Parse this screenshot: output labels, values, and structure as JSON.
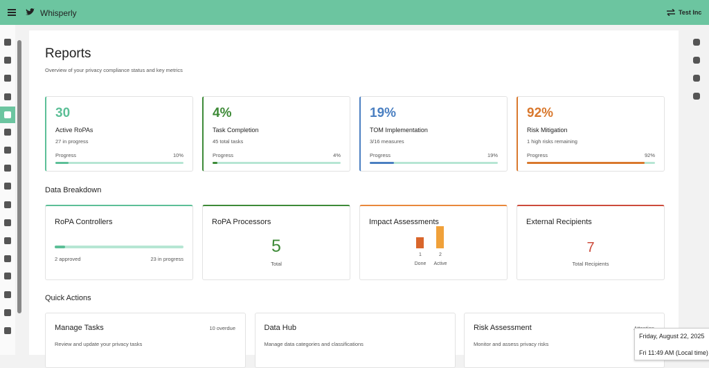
{
  "header": {
    "app_name": "Whisperly",
    "org": "Test Inc"
  },
  "page": {
    "title": "Reports",
    "subtitle": "Overview of your privacy compliance status and key metrics"
  },
  "metrics": [
    {
      "value": "30",
      "label": "Active RoPAs",
      "detail": "27 in progress",
      "progress_label": "Progress",
      "percent": "10%",
      "progress": 10,
      "color": "#5cbf97"
    },
    {
      "value": "4%",
      "label": "Task Completion",
      "detail": "45 total tasks",
      "progress_label": "Progress",
      "percent": "4%",
      "progress": 4,
      "color": "#3d8a37"
    },
    {
      "value": "19%",
      "label": "TOM Implementation",
      "detail": "3/16 measures",
      "progress_label": "Progress",
      "percent": "19%",
      "progress": 19,
      "color": "#4a7fc1"
    },
    {
      "value": "92%",
      "label": "Risk Mitigation",
      "detail": "1 high risks remaining",
      "progress_label": "Progress",
      "percent": "92%",
      "progress": 92,
      "color": "#d9782d"
    }
  ],
  "breakdown": {
    "title": "Data Breakdown",
    "controllers": {
      "title": "RoPA Controllers",
      "approved": "2 approved",
      "in_progress": "23 in progress",
      "progress": 8,
      "color": "#5cbf97"
    },
    "processors": {
      "title": "RoPA Processors",
      "value": "5",
      "caption": "Total",
      "color": "#3d8a37"
    },
    "impact": {
      "title": "Impact Assessments",
      "color": "#e8873a",
      "bars": [
        {
          "value": 1,
          "label": "Done",
          "color": "#d9662b"
        },
        {
          "value": 2,
          "label": "Active",
          "color": "#f0a13a"
        }
      ]
    },
    "recipients": {
      "title": "External Recipients",
      "value": "7",
      "caption": "Total Recipients",
      "color": "#cc4a3a"
    }
  },
  "quick_actions": {
    "title": "Quick Actions",
    "items": [
      {
        "title": "Manage Tasks",
        "badge": "10 overdue",
        "description": "Review and update your privacy tasks"
      },
      {
        "title": "Data Hub",
        "description": "Manage data categories and classifications"
      },
      {
        "title": "Risk Assessment",
        "badge": "Attention",
        "description": "Monitor and assess privacy risks"
      }
    ]
  },
  "tooltip": {
    "date": "Friday, August 22, 2025",
    "time": "Fri 11:49 AM (Local time)"
  }
}
